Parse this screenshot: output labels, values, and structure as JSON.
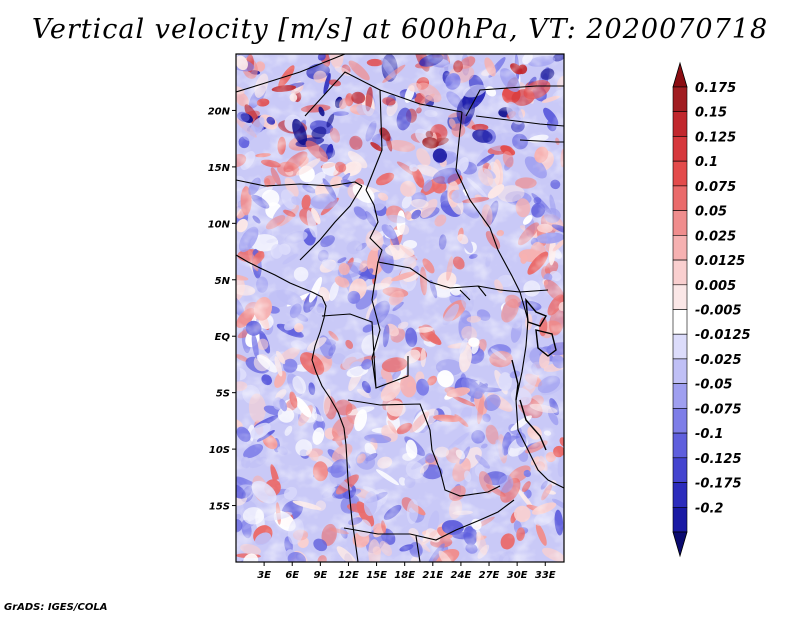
{
  "title": "Vertical velocity [m/s] at 600hPa, VT: 2020070718",
  "credit": "GrADS: IGES/COLA",
  "chart_data": {
    "type": "heatmap",
    "variable": "Vertical velocity",
    "units": "m/s",
    "level": "600hPa",
    "valid_time": "2020070718",
    "lon_range": [
      0,
      35
    ],
    "lat_range": [
      -20,
      25
    ],
    "x_ticks": [
      "3E",
      "6E",
      "9E",
      "12E",
      "15E",
      "18E",
      "21E",
      "24E",
      "27E",
      "30E",
      "33E"
    ],
    "x_tick_values": [
      3,
      6,
      9,
      12,
      15,
      18,
      21,
      24,
      27,
      30,
      33
    ],
    "y_ticks": [
      "20N",
      "15N",
      "10N",
      "5N",
      "EQ",
      "5S",
      "10S",
      "15S"
    ],
    "y_tick_values": [
      20,
      15,
      10,
      5,
      0,
      -5,
      -10,
      -15
    ],
    "colorbar": {
      "labels": [
        "0.175",
        "0.15",
        "0.125",
        "0.1",
        "0.075",
        "0.05",
        "0.025",
        "0.0125",
        "0.005",
        "-0.005",
        "-0.0125",
        "-0.025",
        "-0.05",
        "-0.075",
        "-0.1",
        "-0.125",
        "-0.175",
        "-0.2"
      ],
      "colors": [
        "#a11d21",
        "#c1272d",
        "#d6383c",
        "#e34b4b",
        "#ea6b6b",
        "#f08d8d",
        "#f6b1b1",
        "#f9cfcf",
        "#fbe7e7",
        "#ffffff",
        "#dcdcfb",
        "#c0c0f6",
        "#9f9ff0",
        "#7e7ee8",
        "#5f5fdd",
        "#4444cf",
        "#2c2cbc",
        "#1a1aa4",
        "#0d0d8c"
      ],
      "top_arrow_color": "#8b0d12",
      "bottom_arrow_color": "#0b0b70"
    }
  }
}
